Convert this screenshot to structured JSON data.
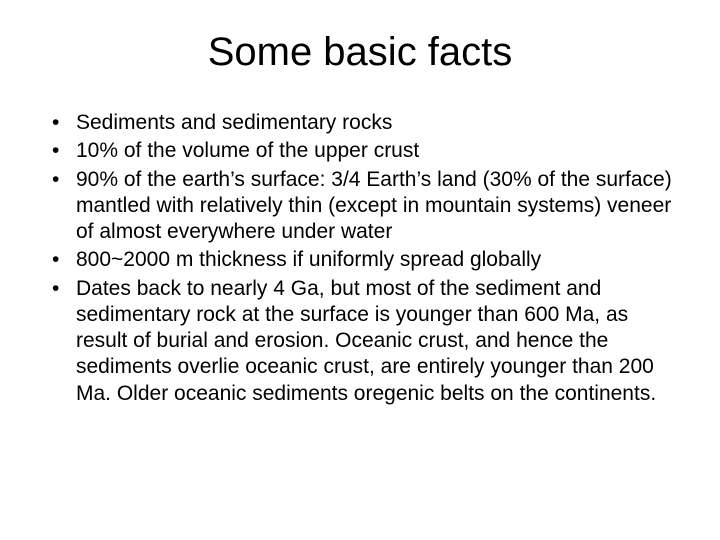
{
  "slide": {
    "title": "Some basic facts",
    "title_fontsize": 40,
    "body_fontsize": 21,
    "text_color": "#000000",
    "background_color": "#ffffff",
    "bullets": [
      "Sediments and  sedimentary rocks",
      "10% of the volume of the upper crust",
      "90% of the earth’s surface: 3/4 Earth’s land (30% of the surface) mantled with relatively thin (except in mountain systems) veneer of almost everywhere under water",
      "800~2000 m thickness if uniformly spread globally",
      "Dates back to nearly 4 Ga, but most of the sediment and sedimentary rock at the surface is younger than 600 Ma, as result of burial and erosion. Oceanic crust, and hence the sediments overlie oceanic crust, are entirely younger than 200 Ma. Older oceanic sediments oregenic belts on the continents."
    ]
  }
}
